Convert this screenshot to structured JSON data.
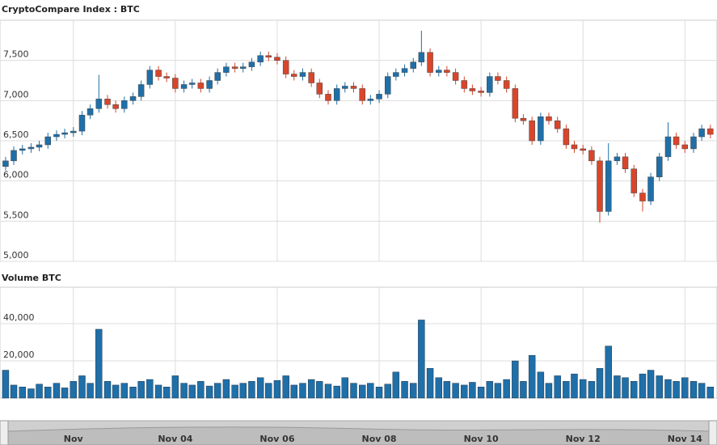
{
  "chart_data": [
    {
      "type": "candlestick",
      "title": "CryptoCompare Index : BTC",
      "up_color": "#1f6fa8",
      "down_color": "#d9452b",
      "x": [
        0.67,
        0.83,
        1,
        1.17,
        1.33,
        1.5,
        1.67,
        1.83,
        2,
        2.17,
        2.33,
        2.5,
        2.67,
        2.83,
        3,
        3.17,
        3.33,
        3.5,
        3.67,
        3.83,
        4,
        4.17,
        4.33,
        4.5,
        4.67,
        4.83,
        5,
        5.17,
        5.33,
        5.5,
        5.67,
        5.83,
        6,
        6.17,
        6.33,
        6.5,
        6.67,
        6.83,
        7,
        7.17,
        7.33,
        7.5,
        7.67,
        7.83,
        8,
        8.17,
        8.33,
        8.5,
        8.67,
        8.83,
        9,
        9.17,
        9.33,
        9.5,
        9.67,
        9.83,
        10,
        10.17,
        10.33,
        10.5,
        10.67,
        10.83,
        11,
        11.17,
        11.33,
        11.5,
        11.67,
        11.83,
        12,
        12.17,
        12.33,
        12.5,
        12.67,
        12.83,
        13,
        13.17,
        13.33,
        13.5,
        13.67,
        13.83,
        14,
        14.17,
        14.33,
        14.5
      ],
      "open": [
        6180,
        6250,
        6380,
        6400,
        6420,
        6450,
        6550,
        6580,
        6600,
        6620,
        6820,
        6900,
        7020,
        6950,
        6900,
        7000,
        7050,
        7200,
        7380,
        7300,
        7280,
        7150,
        7200,
        7220,
        7150,
        7250,
        7350,
        7420,
        7400,
        7420,
        7480,
        7560,
        7540,
        7500,
        7330,
        7300,
        7350,
        7220,
        7080,
        7000,
        7150,
        7180,
        7150,
        7000,
        7020,
        7080,
        7300,
        7350,
        7400,
        7480,
        7600,
        7350,
        7380,
        7350,
        7250,
        7150,
        7120,
        7100,
        7300,
        7250,
        7150,
        6780,
        6750,
        6500,
        6800,
        6750,
        6650,
        6450,
        6400,
        6380,
        6250,
        5620,
        6250,
        6300,
        6150,
        5850,
        5750,
        6050,
        6300,
        6550,
        6450,
        6400,
        6550,
        6650
      ],
      "high": [
        6300,
        6430,
        6450,
        6470,
        6500,
        6600,
        6630,
        6650,
        6670,
        6870,
        6950,
        7320,
        7070,
        7000,
        7050,
        7100,
        7250,
        7430,
        7430,
        7350,
        7330,
        7250,
        7270,
        7270,
        7300,
        7400,
        7470,
        7470,
        7470,
        7530,
        7610,
        7610,
        7590,
        7550,
        7380,
        7400,
        7400,
        7270,
        7130,
        7200,
        7230,
        7230,
        7200,
        7070,
        7130,
        7350,
        7400,
        7450,
        7530,
        7870,
        7650,
        7430,
        7430,
        7400,
        7300,
        7200,
        7170,
        7350,
        7350,
        7300,
        7200,
        6830,
        6800,
        6850,
        6850,
        6800,
        6700,
        6500,
        6450,
        6430,
        6300,
        6470,
        6350,
        6350,
        6200,
        5900,
        6100,
        6350,
        6730,
        6600,
        6500,
        6600,
        6700,
        6700
      ],
      "low": [
        6130,
        6200,
        6330,
        6350,
        6370,
        6400,
        6500,
        6530,
        6550,
        6570,
        6770,
        6850,
        6900,
        6850,
        6850,
        6950,
        7000,
        7150,
        7250,
        7230,
        7100,
        7100,
        7150,
        7100,
        7100,
        7200,
        7300,
        7350,
        7350,
        7370,
        7430,
        7490,
        7450,
        7280,
        7250,
        7250,
        7170,
        7030,
        6950,
        6950,
        7100,
        7100,
        6950,
        6950,
        6970,
        7030,
        7250,
        7300,
        7350,
        7430,
        7300,
        7300,
        7300,
        7200,
        7100,
        7070,
        7050,
        7050,
        7200,
        7100,
        6730,
        6700,
        6450,
        6450,
        6700,
        6600,
        6400,
        6350,
        6330,
        6200,
        5480,
        5570,
        6200,
        6100,
        5800,
        5620,
        5700,
        6000,
        6250,
        6400,
        6350,
        6350,
        6500,
        6530
      ],
      "close": [
        6250,
        6380,
        6400,
        6420,
        6450,
        6550,
        6580,
        6600,
        6620,
        6820,
        6900,
        7020,
        6950,
        6900,
        7000,
        7050,
        7200,
        7380,
        7300,
        7280,
        7150,
        7200,
        7220,
        7150,
        7250,
        7350,
        7420,
        7400,
        7420,
        7480,
        7560,
        7540,
        7500,
        7330,
        7300,
        7350,
        7220,
        7080,
        7000,
        7150,
        7180,
        7150,
        7000,
        7020,
        7080,
        7300,
        7350,
        7400,
        7480,
        7600,
        7350,
        7380,
        7350,
        7250,
        7150,
        7120,
        7100,
        7300,
        7250,
        7150,
        6780,
        6750,
        6500,
        6800,
        6750,
        6650,
        6450,
        6400,
        6380,
        6250,
        5620,
        6250,
        6300,
        6150,
        5850,
        5750,
        6050,
        6300,
        6550,
        6450,
        6400,
        6550,
        6650,
        6580
      ],
      "xlim": [
        0.56,
        14.63
      ],
      "xticks": [
        {
          "value": 2,
          "label": "Nov"
        },
        {
          "value": 4,
          "label": "Nov 04"
        },
        {
          "value": 6,
          "label": "Nov 06"
        },
        {
          "value": 8,
          "label": "Nov 08"
        },
        {
          "value": 10,
          "label": "Nov 10"
        },
        {
          "value": 12,
          "label": "Nov 12"
        },
        {
          "value": 14,
          "label": "Nov 14"
        }
      ],
      "ylim": [
        5000,
        8000
      ],
      "yticks": [
        {
          "value": 5000,
          "label": "5,000"
        },
        {
          "value": 5500,
          "label": "5,500"
        },
        {
          "value": 6000,
          "label": "6,000"
        },
        {
          "value": 6500,
          "label": "6,500"
        },
        {
          "value": 7000,
          "label": "7,000"
        },
        {
          "value": 7500,
          "label": "7,500"
        }
      ],
      "grid": true
    },
    {
      "type": "bar",
      "title": "Volume BTC",
      "color": "#1f6fa8",
      "x": [
        0.67,
        0.83,
        1,
        1.17,
        1.33,
        1.5,
        1.67,
        1.83,
        2,
        2.17,
        2.33,
        2.5,
        2.67,
        2.83,
        3,
        3.17,
        3.33,
        3.5,
        3.67,
        3.83,
        4,
        4.17,
        4.33,
        4.5,
        4.67,
        4.83,
        5,
        5.17,
        5.33,
        5.5,
        5.67,
        5.83,
        6,
        6.17,
        6.33,
        6.5,
        6.67,
        6.83,
        7,
        7.17,
        7.33,
        7.5,
        7.67,
        7.83,
        8,
        8.17,
        8.33,
        8.5,
        8.67,
        8.83,
        9,
        9.17,
        9.33,
        9.5,
        9.67,
        9.83,
        10,
        10.17,
        10.33,
        10.5,
        10.67,
        10.83,
        11,
        11.17,
        11.33,
        11.5,
        11.67,
        11.83,
        12,
        12.17,
        12.33,
        12.5,
        12.67,
        12.83,
        13,
        13.17,
        13.33,
        13.5,
        13.67,
        13.83,
        14,
        14.17,
        14.33,
        14.5
      ],
      "values": [
        15000,
        7000,
        6000,
        5000,
        7500,
        6000,
        8000,
        5500,
        9000,
        12000,
        8000,
        37000,
        9000,
        7000,
        8000,
        6000,
        9000,
        10000,
        7000,
        6000,
        12000,
        8000,
        7000,
        9000,
        6500,
        8000,
        10000,
        7000,
        8000,
        9000,
        11000,
        8000,
        9500,
        12000,
        7000,
        8000,
        10000,
        9000,
        7500,
        6500,
        11000,
        8000,
        7000,
        8000,
        6000,
        7500,
        14000,
        9000,
        8000,
        42000,
        16000,
        11000,
        9000,
        8000,
        7000,
        8500,
        6000,
        9000,
        8000,
        10000,
        20000,
        9000,
        23000,
        14000,
        8000,
        12000,
        9000,
        13000,
        10000,
        9000,
        16000,
        28000,
        12000,
        11000,
        9000,
        13000,
        15000,
        12000,
        10000,
        9000,
        11000,
        9000,
        8000,
        6000
      ],
      "xlim": [
        0.56,
        14.63
      ],
      "ylim": [
        0,
        59600
      ],
      "yticks": [
        {
          "value": 20000,
          "label": "20,000"
        },
        {
          "value": 40000,
          "label": "40,000"
        }
      ],
      "grid": true
    }
  ]
}
